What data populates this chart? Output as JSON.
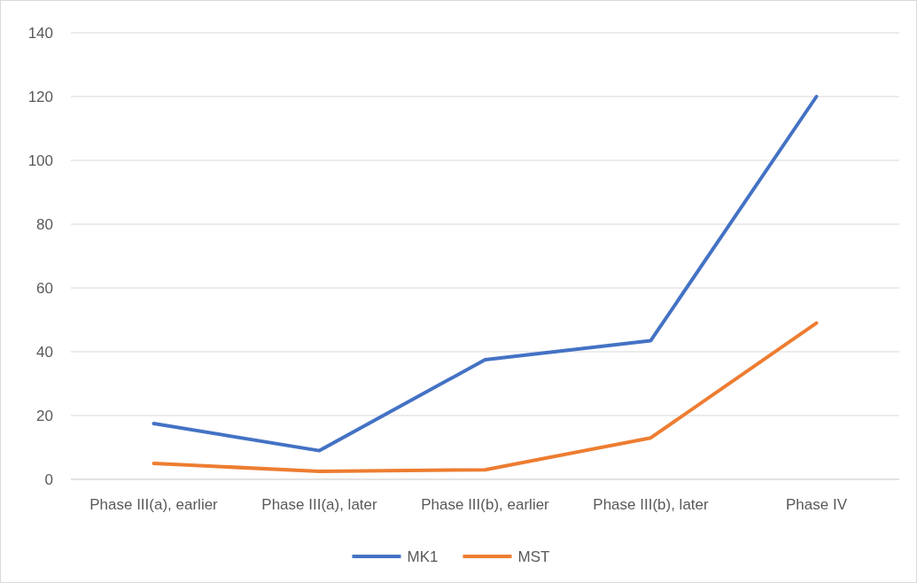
{
  "chart_data": {
    "type": "line",
    "categories": [
      "Phase III(a), earlier",
      "Phase III(a), later",
      "Phase III(b), earlier",
      "Phase III(b), later",
      "Phase IV"
    ],
    "series": [
      {
        "name": "MK1",
        "color": "#4472c4",
        "values": [
          17.5,
          9,
          37.5,
          43.5,
          120
        ]
      },
      {
        "name": "MST",
        "color": "#ed7d31",
        "values": [
          5,
          2.5,
          3,
          13,
          49
        ]
      }
    ],
    "ylim": [
      0,
      140
    ],
    "yticks": [
      0,
      20,
      40,
      60,
      80,
      100,
      120,
      140
    ],
    "grid": "y",
    "legend": "bottom",
    "marker": "none",
    "line_style": "solid"
  }
}
